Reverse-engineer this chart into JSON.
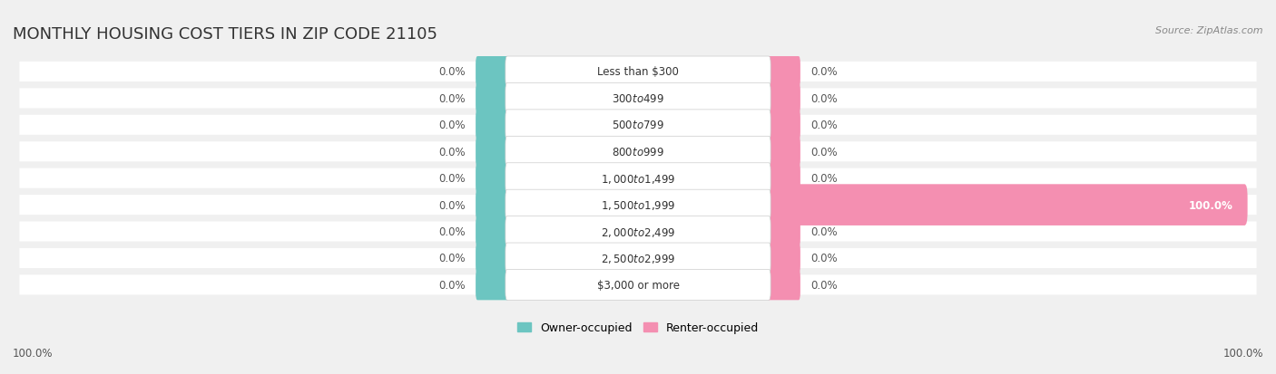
{
  "title": "MONTHLY HOUSING COST TIERS IN ZIP CODE 21105",
  "source": "Source: ZipAtlas.com",
  "categories": [
    "Less than $300",
    "$300 to $499",
    "$500 to $799",
    "$800 to $999",
    "$1,000 to $1,499",
    "$1,500 to $1,999",
    "$2,000 to $2,499",
    "$2,500 to $2,999",
    "$3,000 or more"
  ],
  "owner_values": [
    0.0,
    0.0,
    0.0,
    0.0,
    0.0,
    0.0,
    0.0,
    0.0,
    0.0
  ],
  "renter_values": [
    0.0,
    0.0,
    0.0,
    0.0,
    0.0,
    100.0,
    0.0,
    0.0,
    0.0
  ],
  "owner_color": "#6CC5C1",
  "renter_color": "#F48FB1",
  "bg_color": "#f0f0f0",
  "bar_bg_color": "#e8e8e8",
  "title_fontsize": 13,
  "label_fontsize": 8.5,
  "cat_fontsize": 8.5,
  "source_fontsize": 8,
  "legend_fontsize": 9,
  "bar_height": 0.55,
  "row_bg_color": "#ececec"
}
